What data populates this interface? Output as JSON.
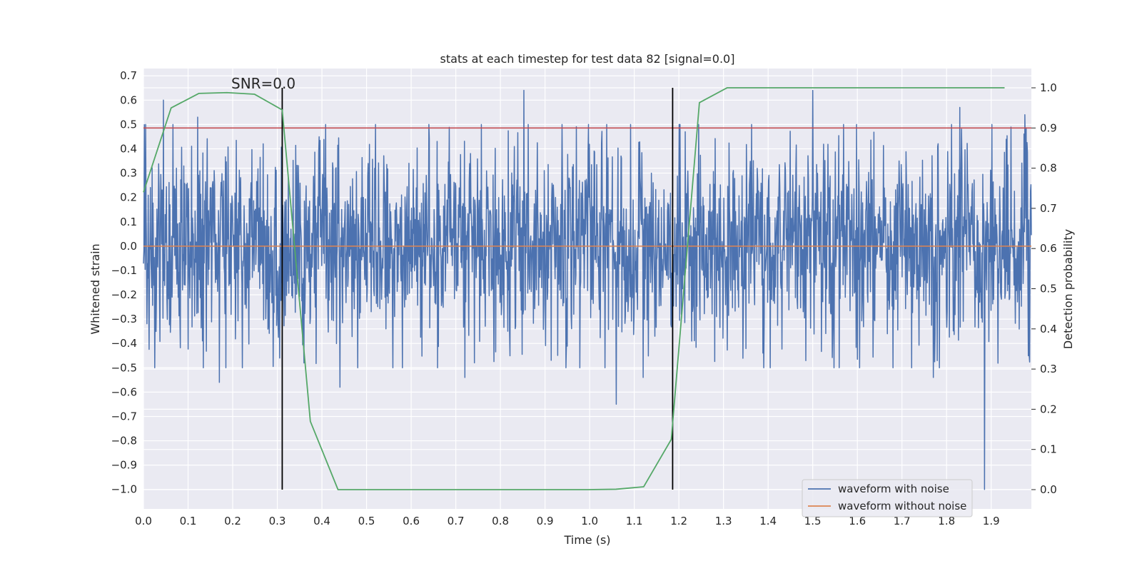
{
  "chart_data": {
    "type": "line",
    "title": "stats at each timestep for test data 82 [signal=0.0]",
    "xlabel": "Time (s)",
    "ylabel": "Whitened strain",
    "y2label": "Detection probability",
    "xlim": [
      0.0,
      1.99
    ],
    "ylim": [
      -1.08,
      0.73
    ],
    "y2lim": [
      -0.048,
      1.048
    ],
    "xticks": [
      0.0,
      0.1,
      0.2,
      0.3,
      0.4,
      0.5,
      0.6,
      0.7,
      0.8,
      0.9,
      1.0,
      1.1,
      1.2,
      1.3,
      1.4,
      1.5,
      1.6,
      1.7,
      1.8,
      1.9
    ],
    "xtick_labels": [
      "0.0",
      "0.1",
      "0.2",
      "0.3",
      "0.4",
      "0.5",
      "0.6",
      "0.7",
      "0.8",
      "0.9",
      "1.0",
      "1.1",
      "1.2",
      "1.3",
      "1.4",
      "1.5",
      "1.6",
      "1.7",
      "1.8",
      "1.9"
    ],
    "yticks": [
      0.7,
      0.6,
      0.5,
      0.4,
      0.3,
      0.2,
      0.1,
      0.0,
      -0.1,
      -0.2,
      -0.3,
      -0.4,
      -0.5,
      -0.6,
      -0.7,
      -0.8,
      -0.9,
      -1.0
    ],
    "ytick_labels": [
      "0.7",
      "0.6",
      "0.5",
      "0.4",
      "0.3",
      "0.2",
      "0.1",
      "0.0",
      "−0.1",
      "−0.2",
      "−0.3",
      "−0.4",
      "−0.5",
      "−0.6",
      "−0.7",
      "−0.8",
      "−0.9",
      "−1.0"
    ],
    "y2ticks": [
      1.0,
      0.9,
      0.8,
      0.7,
      0.6,
      0.5,
      0.4,
      0.3,
      0.2,
      0.1,
      0.0
    ],
    "y2tick_labels": [
      "1.0",
      "0.9",
      "0.8",
      "0.7",
      "0.6",
      "0.5",
      "0.4",
      "0.3",
      "0.2",
      "0.1",
      "0.0"
    ],
    "annotation": "SNR=0.0",
    "threshold_y2": 0.9,
    "vlines": [
      {
        "x": 0.311,
        "y2_from": 0.0,
        "y2_to": 1.0
      },
      {
        "x": 1.186,
        "y2_from": 0.0,
        "y2_to": 1.0
      }
    ],
    "series": [
      {
        "name": "waveform with noise",
        "axis": "left",
        "color": "#4c72b0",
        "kind": "noise",
        "n_samples": 2048,
        "x_range": [
          0.0,
          1.99
        ],
        "std": 0.21,
        "seed": 82,
        "peaks": [
          {
            "x": 0.045,
            "y": 0.6
          },
          {
            "x": 0.122,
            "y": 0.53
          },
          {
            "x": 0.17,
            "y": -0.56
          },
          {
            "x": 0.305,
            "y": -0.46
          },
          {
            "x": 0.36,
            "y": -0.48
          },
          {
            "x": 0.44,
            "y": -0.58
          },
          {
            "x": 0.72,
            "y": -0.54
          },
          {
            "x": 0.853,
            "y": 0.64
          },
          {
            "x": 1.06,
            "y": -0.65
          },
          {
            "x": 1.12,
            "y": -0.54
          },
          {
            "x": 1.5,
            "y": 0.64
          },
          {
            "x": 1.77,
            "y": -0.54
          },
          {
            "x": 1.885,
            "y": -1.0
          },
          {
            "x": 1.83,
            "y": 0.57
          },
          {
            "x": 1.975,
            "y": 0.54
          }
        ]
      },
      {
        "name": "waveform without noise",
        "axis": "left",
        "color": "#dd8452",
        "kind": "line",
        "x": [
          0.0,
          1.99
        ],
        "y": [
          0.0,
          0.0
        ]
      },
      {
        "name": "detection probability",
        "axis": "right",
        "color": "#55a868",
        "kind": "line",
        "x": [
          0.0,
          0.062,
          0.124,
          0.187,
          0.249,
          0.311,
          0.374,
          0.436,
          0.498,
          0.56,
          0.623,
          0.685,
          0.747,
          0.81,
          0.872,
          0.934,
          0.996,
          1.059,
          1.121,
          1.183,
          1.246,
          1.308,
          1.37,
          1.432,
          1.495,
          1.557,
          1.619,
          1.681,
          1.744,
          1.806,
          1.868,
          1.93
        ],
        "y": [
          0.74,
          0.95,
          0.986,
          0.988,
          0.984,
          0.945,
          0.17,
          0.0,
          0.0,
          0.0,
          0.0,
          0.0,
          0.0,
          0.0,
          0.0,
          0.0,
          0.0,
          0.001,
          0.007,
          0.125,
          0.963,
          1.0,
          1.0,
          1.0,
          1.0,
          1.0,
          1.0,
          1.0,
          1.0,
          1.0,
          1.0,
          1.0
        ]
      }
    ],
    "legend": {
      "placement": "lower-right",
      "entries": [
        {
          "label": "waveform with noise",
          "color": "#4c72b0"
        },
        {
          "label": "waveform without noise",
          "color": "#dd8452"
        }
      ]
    }
  },
  "colors": {
    "plot_background": "#eaeaf2",
    "grid": "#ffffff",
    "threshold": "#c44e52",
    "vline": "#000000"
  }
}
